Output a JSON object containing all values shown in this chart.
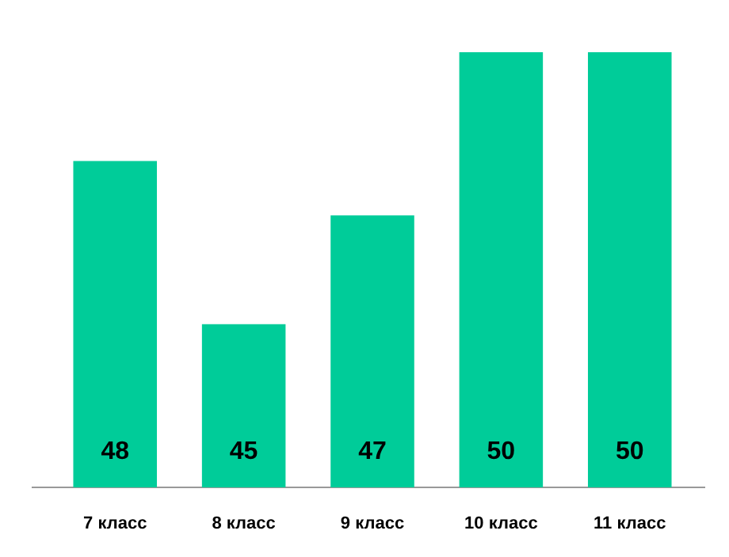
{
  "chart_data": {
    "type": "bar",
    "categories": [
      "7 класс",
      "8 класс",
      "9 класс",
      "10 класс",
      "11 класс"
    ],
    "values": [
      48,
      45,
      47,
      50,
      50
    ],
    "color": "#00cc99",
    "ylim": [
      42,
      50
    ],
    "data_labels": true,
    "tick_labels": "x"
  }
}
